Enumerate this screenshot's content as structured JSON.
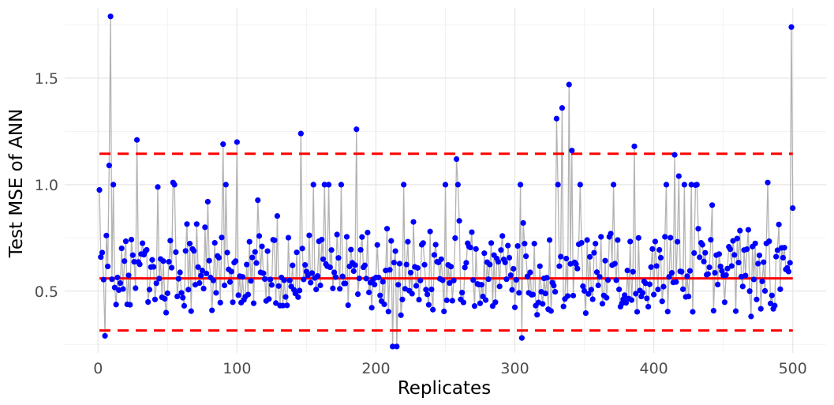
{
  "chart_data": {
    "type": "scatter",
    "xlabel": "Replicates",
    "ylabel": "Test MSE of ANN",
    "xlim": [
      -24,
      524
    ],
    "ylim": [
      0.21,
      1.83
    ],
    "x_ticks": [
      0,
      100,
      200,
      300,
      400,
      500
    ],
    "x_tick_labels": [
      "0",
      "100",
      "200",
      "300",
      "400",
      "500"
    ],
    "y_ticks": [
      0.5,
      1.0,
      1.5
    ],
    "y_tick_labels": [
      "0.5",
      "1.0",
      "1.5"
    ],
    "grid": true,
    "legend": "none",
    "colors": {
      "points": "#0000ff",
      "line": "#b3b3b3",
      "reference": "#ff0000"
    },
    "reference_lines": [
      {
        "y": 0.56,
        "style": "solid"
      },
      {
        "y": 1.145,
        "style": "dashed"
      },
      {
        "y": 0.315,
        "style": "dashed"
      }
    ],
    "highlights": [
      {
        "x": 9,
        "y": 1.79
      },
      {
        "x": 8,
        "y": 1.09
      },
      {
        "x": 5,
        "y": 0.29
      },
      {
        "x": 28,
        "y": 1.21
      },
      {
        "x": 54,
        "y": 1.01
      },
      {
        "x": 90,
        "y": 1.19
      },
      {
        "x": 100,
        "y": 1.2
      },
      {
        "x": 146,
        "y": 1.24
      },
      {
        "x": 186,
        "y": 1.26
      },
      {
        "x": 212,
        "y": 0.24
      },
      {
        "x": 215,
        "y": 0.24
      },
      {
        "x": 250,
        "y": 1.0
      },
      {
        "x": 258,
        "y": 1.12
      },
      {
        "x": 305,
        "y": 0.28
      },
      {
        "x": 330,
        "y": 1.31
      },
      {
        "x": 334,
        "y": 1.36
      },
      {
        "x": 339,
        "y": 1.47
      },
      {
        "x": 341,
        "y": 1.16
      },
      {
        "x": 386,
        "y": 1.18
      },
      {
        "x": 415,
        "y": 1.14
      },
      {
        "x": 418,
        "y": 1.04
      },
      {
        "x": 482,
        "y": 1.01
      },
      {
        "x": 499,
        "y": 1.74
      },
      {
        "x": 500,
        "y": 0.89
      }
    ]
  }
}
